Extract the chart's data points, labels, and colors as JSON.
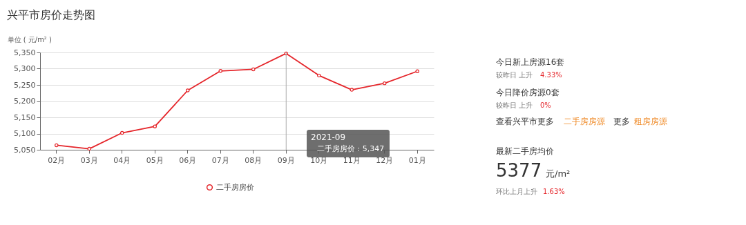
{
  "chart_data": [
    {
      "type": "line",
      "title": "兴平市房价走势图",
      "ylabel": "单位 ( 元/m² )",
      "categories": [
        "02月",
        "03月",
        "04月",
        "05月",
        "06月",
        "07月",
        "08月",
        "09月",
        "10月",
        "11月",
        "12月",
        "01月"
      ],
      "series": [
        {
          "name": "二手房房价",
          "color": "#e5252a",
          "values": [
            5064,
            5053,
            5102,
            5122,
            5233,
            5293,
            5298,
            5347,
            5279,
            5235,
            5255,
            5292
          ]
        }
      ],
      "ylim": [
        5050,
        5350
      ],
      "yticks": [
        {
          "value": 5050,
          "label": "5,050"
        },
        {
          "value": 5100,
          "label": "5,100"
        },
        {
          "value": 5150,
          "label": "5,150"
        },
        {
          "value": 5200,
          "label": "5,200"
        },
        {
          "value": 5250,
          "label": "5,250"
        },
        {
          "value": 5300,
          "label": "5,300"
        },
        {
          "value": 5350,
          "label": "5,350"
        }
      ],
      "grid": "y",
      "legend": "bottom",
      "marker": "circle",
      "line_style": "solid",
      "ref_lines": [
        {
          "axis": "x",
          "value": "09月",
          "label": null,
          "color": "#aaaaaa"
        }
      ],
      "annotations": [
        "2021-09",
        "二手房房价 : 5,347"
      ]
    },
    {
      "type": "other",
      "annotations": [
        "今日新上房源16套",
        "较昨日 上升",
        "4.33%",
        "今日降价房源0套",
        "较昨日 上升",
        "0%",
        "查看兴平市更多",
        "二手房房源",
        "更多",
        "租房房源",
        "最新二手房均价",
        "5377",
        "元/m²",
        "环比上月上升",
        "1.63%"
      ]
    }
  ]
}
